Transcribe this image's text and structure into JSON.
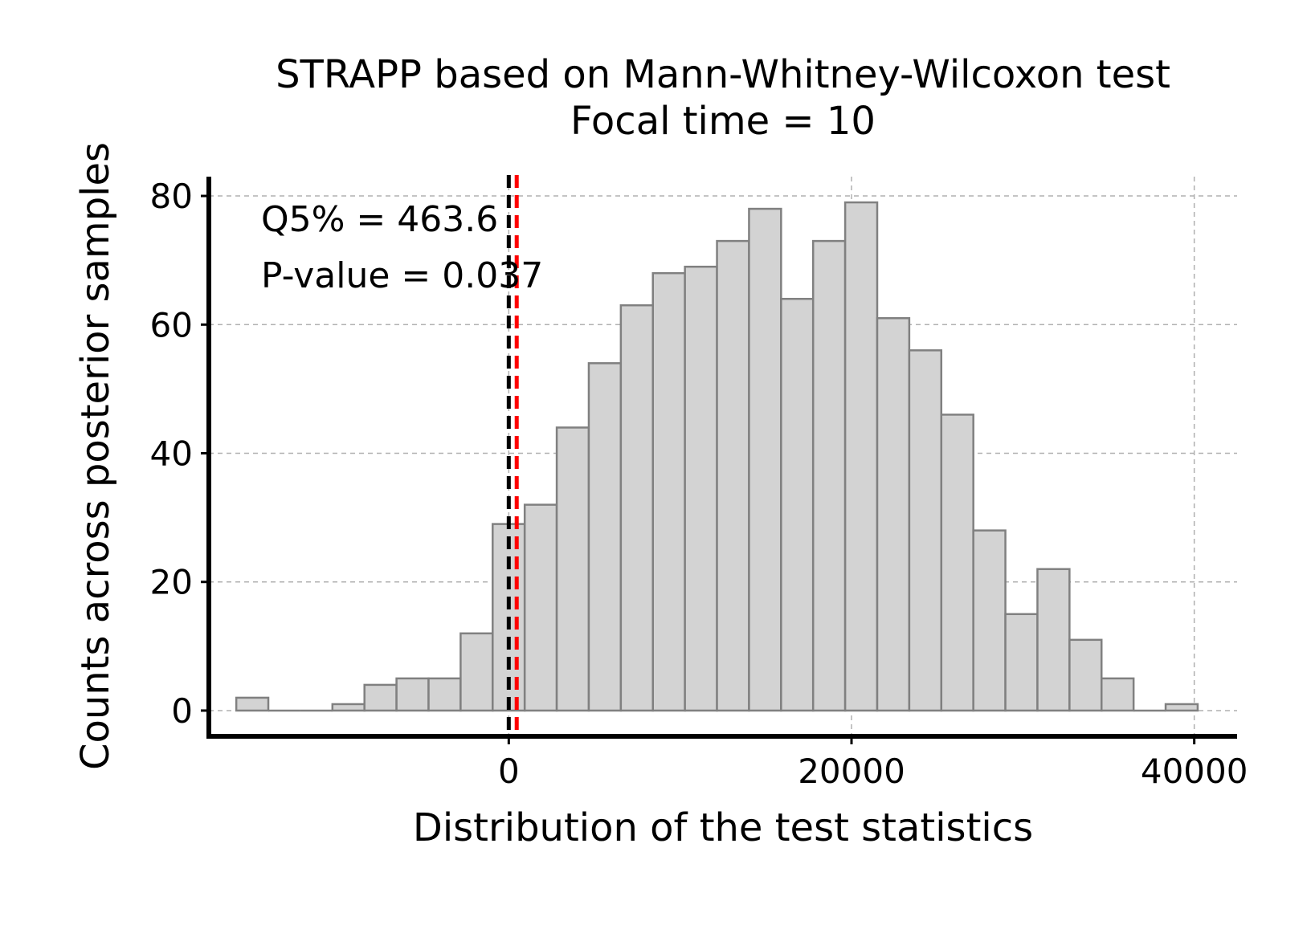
{
  "chart_data": {
    "type": "bar",
    "title": "STRAPP based on Mann-Whitney-Wilcoxon test",
    "subtitle": "Focal time = 10",
    "xlabel": "Distribution of the test statistics",
    "ylabel": "Counts across posterior samples",
    "xlim": [
      -17500,
      42500
    ],
    "ylim": [
      -4,
      83
    ],
    "xticks": [
      0,
      20000,
      40000
    ],
    "xtick_labels": [
      "0",
      "20000",
      "40000"
    ],
    "yticks": [
      0,
      20,
      40,
      60,
      80
    ],
    "ytick_labels": [
      "0",
      "20",
      "40",
      "60",
      "80"
    ],
    "grid": true,
    "bin_start": -15900,
    "bin_width": 1870,
    "values": [
      2,
      0,
      0,
      1,
      4,
      5,
      5,
      12,
      29,
      32,
      44,
      54,
      63,
      68,
      69,
      73,
      78,
      64,
      73,
      79,
      61,
      56,
      46,
      28,
      15,
      22,
      11,
      5,
      0,
      1
    ],
    "reference_lines": [
      {
        "name": "zero",
        "x": 0,
        "color": "#000000"
      },
      {
        "name": "Q5%",
        "x": 463.6,
        "color": "#ff0000"
      }
    ],
    "annotations": {
      "q5": "Q5% = 463.6",
      "pvalue": "P-value = 0.037"
    }
  }
}
